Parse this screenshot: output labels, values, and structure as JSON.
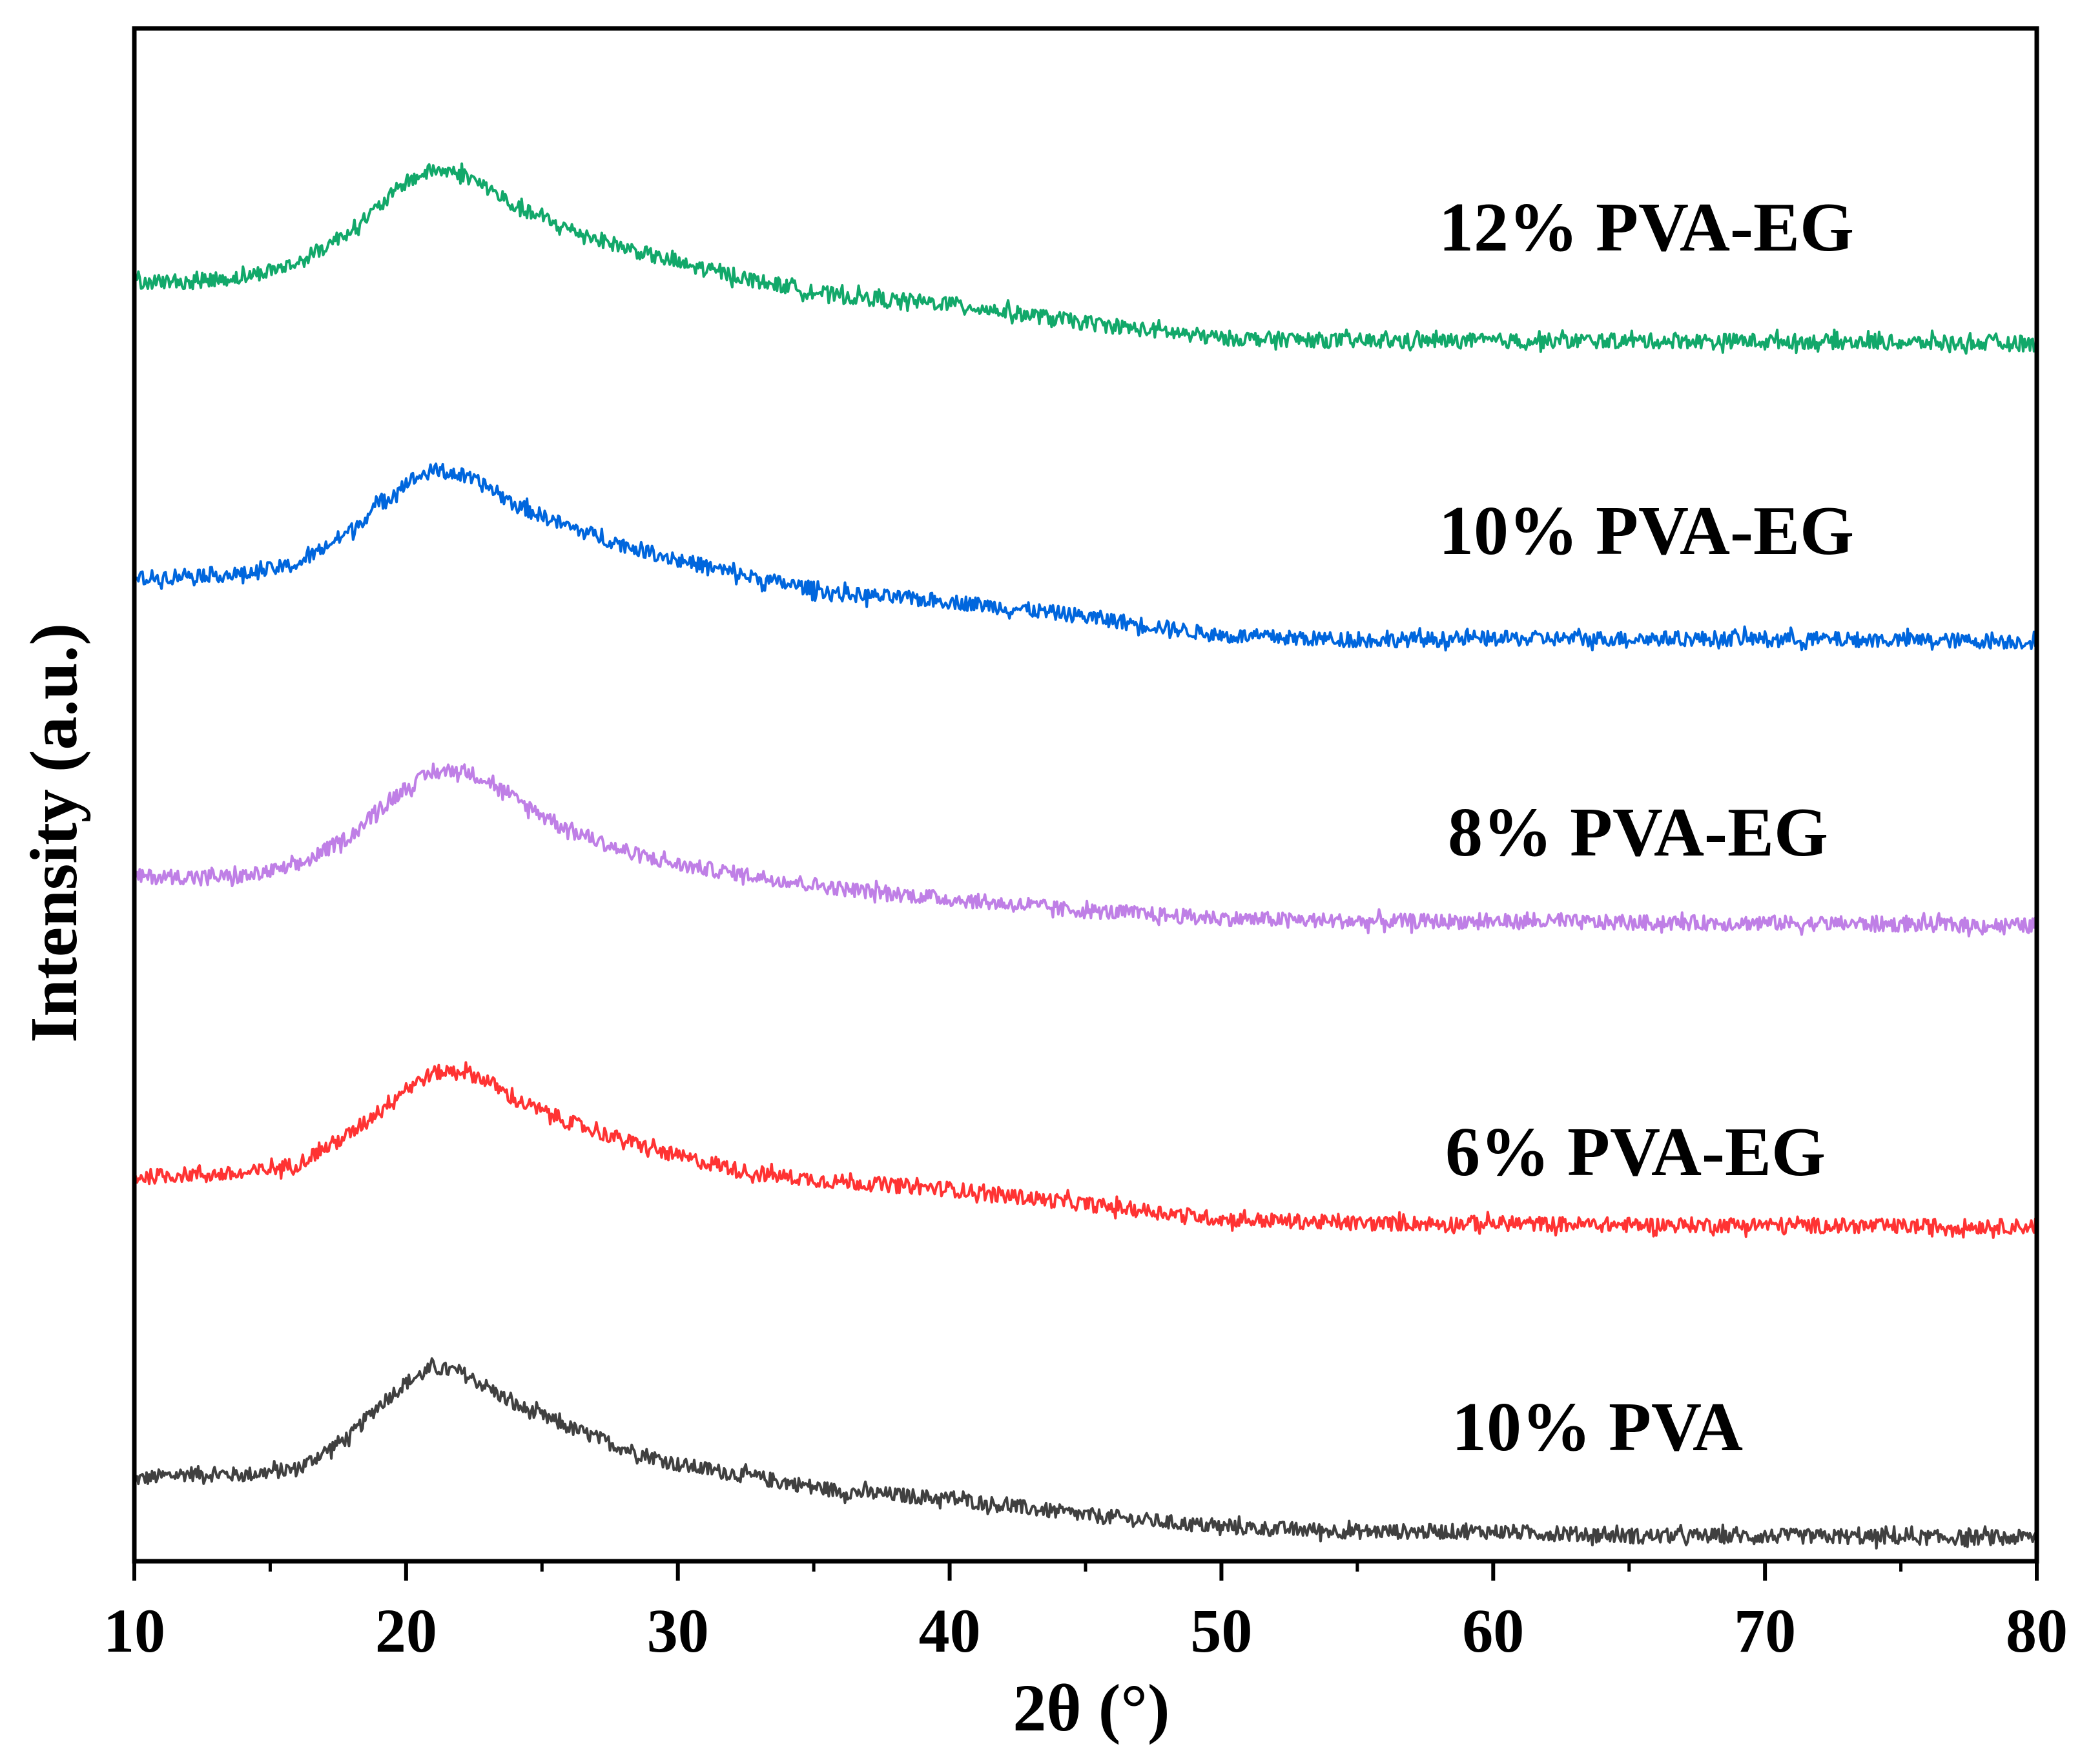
{
  "chart_data": {
    "type": "line",
    "title": "",
    "xlabel": "2θ (°)",
    "ylabel": "Intensity (a.u.)",
    "xlim": [
      10,
      80
    ],
    "ylim": [
      0,
      10.3
    ],
    "grid": false,
    "legend": "inline labels at right",
    "xticks": [
      10,
      20,
      30,
      40,
      50,
      60,
      70,
      80
    ],
    "yticks_shown": false,
    "series": [
      {
        "name": "10% PVA",
        "color": "#404040",
        "x": [
          10,
          12,
          14,
          16,
          18,
          19,
          20,
          21,
          22,
          23,
          24,
          26,
          28,
          30,
          33,
          36,
          40,
          45,
          50,
          55,
          60,
          65,
          70,
          75,
          80
        ],
        "base": [
          0.55,
          0.59,
          0.58,
          0.62,
          0.85,
          1.05,
          1.2,
          1.3,
          1.27,
          1.17,
          1.05,
          0.9,
          0.76,
          0.65,
          0.56,
          0.47,
          0.42,
          0.31,
          0.23,
          0.2,
          0.2,
          0.17,
          0.17,
          0.16,
          0.16
        ],
        "noise": 0.05
      },
      {
        "name": "6% PVA-EG",
        "color": "#ff3333",
        "x": [
          10,
          12,
          14,
          16,
          18,
          19,
          20,
          21,
          22,
          23,
          24,
          26,
          28,
          30,
          33,
          36,
          40,
          45,
          50,
          55,
          60,
          65,
          70,
          75,
          80
        ],
        "base": [
          2.58,
          2.6,
          2.6,
          2.67,
          2.88,
          3.03,
          3.18,
          3.28,
          3.3,
          3.23,
          3.1,
          2.95,
          2.83,
          2.72,
          2.6,
          2.55,
          2.5,
          2.4,
          2.3,
          2.27,
          2.27,
          2.26,
          2.26,
          2.25,
          2.25
        ],
        "noise": 0.05
      },
      {
        "name": "8% PVA-EG",
        "color": "#bf7fe6",
        "x": [
          10,
          12,
          14,
          16,
          18,
          19,
          20,
          21,
          22,
          23,
          24,
          26,
          28,
          30,
          33,
          36,
          40,
          45,
          50,
          55,
          60,
          65,
          70,
          75,
          80
        ],
        "base": [
          4.6,
          4.6,
          4.6,
          4.67,
          4.88,
          5.05,
          5.2,
          5.3,
          5.32,
          5.25,
          5.12,
          4.92,
          4.77,
          4.68,
          4.6,
          4.52,
          4.45,
          4.37,
          4.32,
          4.3,
          4.3,
          4.29,
          4.29,
          4.28,
          4.27
        ],
        "noise": 0.05
      },
      {
        "name": "10% PVA-EG",
        "color": "#0066dd",
        "x": [
          10,
          12,
          14,
          16,
          18,
          19,
          20,
          21,
          22,
          23,
          24,
          26,
          28,
          30,
          33,
          36,
          40,
          45,
          50,
          55,
          60,
          65,
          70,
          75,
          80
        ],
        "base": [
          6.6,
          6.63,
          6.63,
          6.7,
          6.93,
          7.1,
          7.25,
          7.33,
          7.3,
          7.22,
          7.1,
          6.95,
          6.83,
          6.73,
          6.6,
          6.5,
          6.45,
          6.35,
          6.22,
          6.19,
          6.2,
          6.2,
          6.2,
          6.19,
          6.18
        ],
        "noise": 0.05
      },
      {
        "name": "12% PVA-EG",
        "color": "#12a86a",
        "x": [
          10,
          12,
          14,
          16,
          18,
          19,
          20,
          21,
          22,
          23,
          24,
          26,
          28,
          30,
          33,
          36,
          40,
          45,
          50,
          55,
          60,
          65,
          70,
          75,
          80
        ],
        "base": [
          8.6,
          8.6,
          8.63,
          8.72,
          8.95,
          9.1,
          9.27,
          9.35,
          9.33,
          9.23,
          9.1,
          8.95,
          8.83,
          8.72,
          8.6,
          8.5,
          8.45,
          8.32,
          8.22,
          8.2,
          8.2,
          8.2,
          8.2,
          8.19,
          8.18
        ],
        "noise": 0.05
      }
    ]
  }
}
